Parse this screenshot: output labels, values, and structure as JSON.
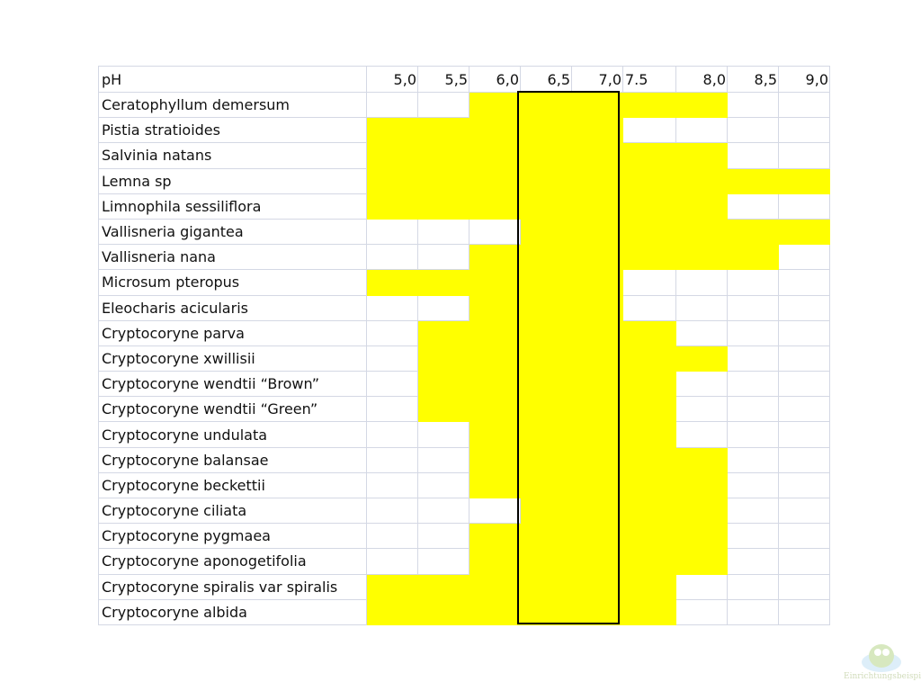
{
  "header": {
    "label": "pH",
    "columns": [
      "5,0",
      "5,5",
      "6,0",
      "6,5",
      "7,0",
      "7.5",
      "8,0",
      "8,5",
      "9,0"
    ]
  },
  "highlight_color": "#ffff00",
  "rows": [
    {
      "name": "Ceratophyllum demersum",
      "tolerated": [
        0,
        0,
        1,
        1,
        1,
        1,
        1,
        0,
        0
      ]
    },
    {
      "name": "Pistia stratioides",
      "tolerated": [
        1,
        1,
        1,
        1,
        1,
        0,
        0,
        0,
        0
      ]
    },
    {
      "name": "Salvinia natans",
      "tolerated": [
        1,
        1,
        1,
        1,
        1,
        1,
        1,
        0,
        0
      ]
    },
    {
      "name": "Lemna sp",
      "tolerated": [
        1,
        1,
        1,
        1,
        1,
        1,
        1,
        1,
        1
      ]
    },
    {
      "name": "Limnophila sessiliflora",
      "tolerated": [
        1,
        1,
        1,
        1,
        1,
        1,
        1,
        0,
        0
      ]
    },
    {
      "name": "Vallisneria gigantea",
      "tolerated": [
        0,
        0,
        0,
        1,
        1,
        1,
        1,
        1,
        1
      ]
    },
    {
      "name": "Vallisneria nana",
      "tolerated": [
        0,
        0,
        1,
        1,
        1,
        1,
        1,
        1,
        0
      ]
    },
    {
      "name": "Microsum pteropus",
      "tolerated": [
        1,
        1,
        1,
        1,
        1,
        0,
        0,
        0,
        0
      ]
    },
    {
      "name": "Eleocharis acicularis",
      "tolerated": [
        0,
        0,
        1,
        1,
        1,
        0,
        0,
        0,
        0
      ]
    },
    {
      "name": "Cryptocoryne parva",
      "tolerated": [
        0,
        1,
        1,
        1,
        1,
        1,
        0,
        0,
        0
      ]
    },
    {
      "name": "Cryptocoryne xwillisii",
      "tolerated": [
        0,
        1,
        1,
        1,
        1,
        1,
        1,
        0,
        0
      ]
    },
    {
      "name": "Cryptocoryne wendtii “Brown”",
      "tolerated": [
        0,
        1,
        1,
        1,
        1,
        1,
        0,
        0,
        0
      ]
    },
    {
      "name": "Cryptocoryne wendtii “Green”",
      "tolerated": [
        0,
        1,
        1,
        1,
        1,
        1,
        0,
        0,
        0
      ]
    },
    {
      "name": "Cryptocoryne undulata",
      "tolerated": [
        0,
        0,
        1,
        1,
        1,
        1,
        0,
        0,
        0
      ]
    },
    {
      "name": "Cryptocoryne balansae",
      "tolerated": [
        0,
        0,
        1,
        1,
        1,
        1,
        1,
        0,
        0
      ]
    },
    {
      "name": "Cryptocoryne beckettii",
      "tolerated": [
        0,
        0,
        1,
        1,
        1,
        1,
        1,
        0,
        0
      ]
    },
    {
      "name": "Cryptocoryne ciliata",
      "tolerated": [
        0,
        0,
        0,
        1,
        1,
        1,
        1,
        0,
        0
      ]
    },
    {
      "name": "Cryptocoryne pygmaea",
      "tolerated": [
        0,
        0,
        1,
        1,
        1,
        1,
        1,
        0,
        0
      ]
    },
    {
      "name": "Cryptocoryne aponogetifolia",
      "tolerated": [
        0,
        0,
        1,
        1,
        1,
        1,
        1,
        0,
        0
      ]
    },
    {
      "name": "Cryptocoryne spiralis var spiralis",
      "tolerated": [
        1,
        1,
        1,
        1,
        1,
        1,
        0,
        0,
        0
      ]
    },
    {
      "name": "Cryptocoryne albida",
      "tolerated": [
        1,
        1,
        1,
        1,
        1,
        1,
        0,
        0,
        0
      ]
    }
  ],
  "watermark": {
    "text": "www.Einrichtungsbeispiele.de"
  }
}
